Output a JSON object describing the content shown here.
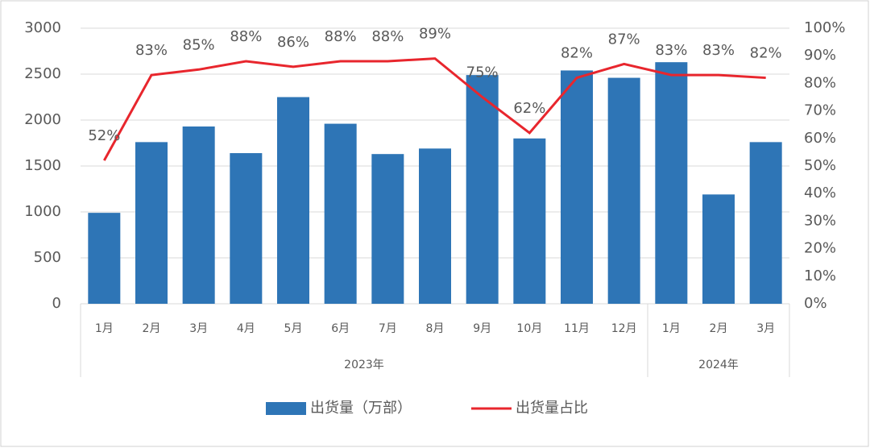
{
  "chart_data": {
    "type": "bar-line",
    "groups": [
      {
        "label": "2023年",
        "categories": [
          "1月",
          "2月",
          "3月",
          "4月",
          "5月",
          "6月",
          "7月",
          "8月",
          "9月",
          "10月",
          "11月",
          "12月"
        ]
      },
      {
        "label": "2024年",
        "categories": [
          "1月",
          "2月",
          "3月"
        ]
      }
    ],
    "series": [
      {
        "name": "出货量（万部）",
        "type": "bar",
        "color": "#2e75b6",
        "values": [
          990,
          1760,
          1930,
          1640,
          2250,
          1960,
          1630,
          1690,
          2490,
          1800,
          2540,
          2460,
          2630,
          1190,
          1760
        ]
      },
      {
        "name": "出货量占比",
        "type": "line",
        "axis": "y2",
        "color": "#e8262d",
        "values": [
          52,
          83,
          85,
          88,
          86,
          88,
          88,
          89,
          75,
          62,
          82,
          87,
          83,
          83,
          82
        ],
        "value_labels": [
          "52%",
          "83%",
          "85%",
          "88%",
          "86%",
          "88%",
          "88%",
          "89%",
          "75%",
          "62%",
          "82%",
          "87%",
          "83%",
          "83%",
          "82%"
        ]
      }
    ],
    "ylim": [
      0,
      3000
    ],
    "yticks": [
      0,
      500,
      1000,
      1500,
      2000,
      2500,
      3000
    ],
    "y2lim": [
      0,
      100
    ],
    "y2ticks": [
      {
        "value": 0,
        "label": "0%"
      },
      {
        "value": 10,
        "label": "10%"
      },
      {
        "value": 20,
        "label": "20%"
      },
      {
        "value": 30,
        "label": "30%"
      },
      {
        "value": 40,
        "label": "40%"
      },
      {
        "value": 50,
        "label": "50%"
      },
      {
        "value": 60,
        "label": "60%"
      },
      {
        "value": 70,
        "label": "70%"
      },
      {
        "value": 80,
        "label": "80%"
      },
      {
        "value": 90,
        "label": "90%"
      },
      {
        "value": 100,
        "label": "100%"
      }
    ],
    "grid": true,
    "legend": "bottom"
  }
}
